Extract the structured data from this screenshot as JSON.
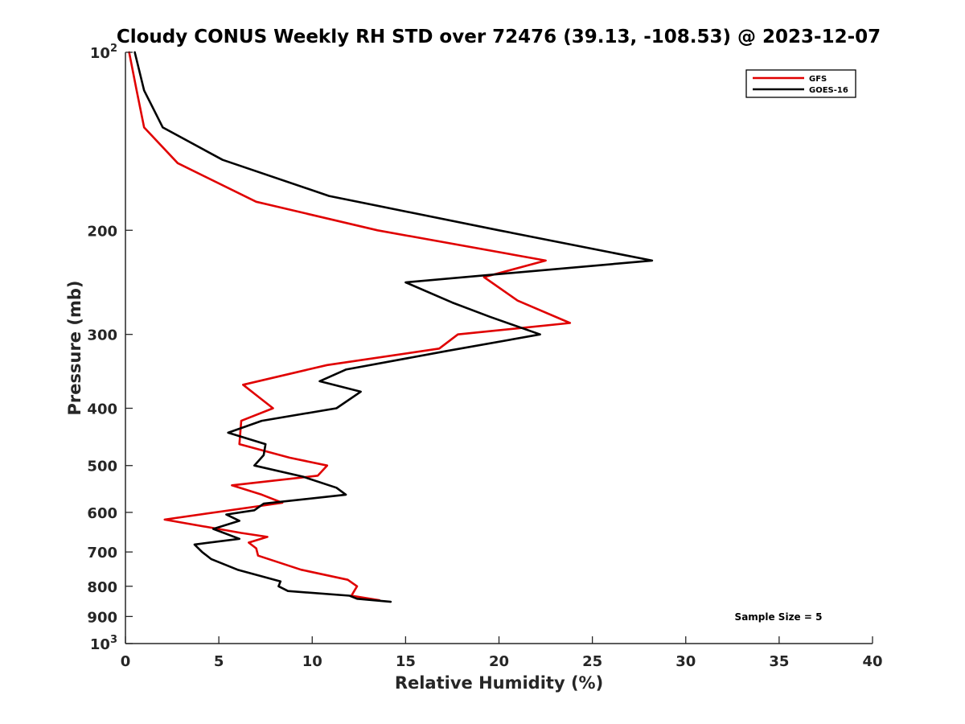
{
  "chart_data": {
    "type": "line",
    "title": "Cloudy CONUS Weekly RH STD over 72476 (39.13, -108.53) @ 2023-12-07",
    "xlabel": "Relative Humidity (%)",
    "ylabel": "Pressure (mb)",
    "xlim": [
      0,
      40
    ],
    "ylim": [
      100,
      1000
    ],
    "yscale": "log",
    "y_reversed": true,
    "grid": false,
    "legend_position": "top-right",
    "x_ticks": [
      0,
      5,
      10,
      15,
      20,
      25,
      30,
      35,
      40
    ],
    "x_tick_labels": [
      "0",
      "5",
      "10",
      "15",
      "20",
      "25",
      "30",
      "35",
      "40"
    ],
    "y_ticks": [
      100,
      200,
      300,
      400,
      500,
      600,
      700,
      800,
      900,
      1000
    ],
    "y_tick_labels": [
      {
        "base": "10",
        "exp": "2"
      },
      {
        "base": "200",
        "exp": ""
      },
      {
        "base": "300",
        "exp": ""
      },
      {
        "base": "400",
        "exp": ""
      },
      {
        "base": "500",
        "exp": ""
      },
      {
        "base": "600",
        "exp": ""
      },
      {
        "base": "700",
        "exp": ""
      },
      {
        "base": "800",
        "exp": ""
      },
      {
        "base": "900",
        "exp": ""
      },
      {
        "base": "10",
        "exp": "3"
      }
    ],
    "annotation": "Sample Size = 5",
    "series": [
      {
        "name": "GFS",
        "color": "#e00000",
        "points": [
          [
            0.2,
            100
          ],
          [
            0.6,
            116
          ],
          [
            1.0,
            134
          ],
          [
            2.8,
            154
          ],
          [
            7.0,
            179
          ],
          [
            13.5,
            200
          ],
          [
            22.5,
            225
          ],
          [
            19.2,
            240
          ],
          [
            21.0,
            263
          ],
          [
            23.8,
            287
          ],
          [
            17.8,
            300
          ],
          [
            16.8,
            317
          ],
          [
            10.8,
            338
          ],
          [
            6.3,
            365
          ],
          [
            7.0,
            380
          ],
          [
            7.9,
            400
          ],
          [
            6.2,
            420
          ],
          [
            6.1,
            460
          ],
          [
            8.8,
            485
          ],
          [
            10.8,
            500
          ],
          [
            10.3,
            520
          ],
          [
            5.7,
            540
          ],
          [
            7.3,
            560
          ],
          [
            8.4,
            578
          ],
          [
            2.1,
            617
          ],
          [
            6.2,
            650
          ],
          [
            7.6,
            660
          ],
          [
            6.6,
            675
          ],
          [
            7.0,
            690
          ],
          [
            7.1,
            710
          ],
          [
            9.4,
            750
          ],
          [
            11.9,
            780
          ],
          [
            12.4,
            800
          ],
          [
            12.1,
            830
          ],
          [
            13.6,
            845
          ]
        ]
      },
      {
        "name": "GOES-16",
        "color": "#000000",
        "points": [
          [
            0.5,
            100
          ],
          [
            1.0,
            116
          ],
          [
            2.0,
            134
          ],
          [
            5.2,
            152
          ],
          [
            10.9,
            175
          ],
          [
            20.0,
            200
          ],
          [
            28.2,
            225
          ],
          [
            15.0,
            245
          ],
          [
            17.5,
            265
          ],
          [
            19.5,
            280
          ],
          [
            22.2,
            300
          ],
          [
            17.2,
            320
          ],
          [
            11.8,
            344
          ],
          [
            10.4,
            360
          ],
          [
            12.6,
            375
          ],
          [
            11.3,
            400
          ],
          [
            7.3,
            420
          ],
          [
            5.5,
            440
          ],
          [
            7.5,
            460
          ],
          [
            7.4,
            480
          ],
          [
            6.9,
            500
          ],
          [
            9.5,
            522
          ],
          [
            11.3,
            545
          ],
          [
            11.8,
            560
          ],
          [
            7.4,
            580
          ],
          [
            6.9,
            595
          ],
          [
            5.4,
            605
          ],
          [
            6.1,
            620
          ],
          [
            4.7,
            640
          ],
          [
            6.1,
            665
          ],
          [
            3.7,
            680
          ],
          [
            4.1,
            700
          ],
          [
            4.6,
            720
          ],
          [
            6.0,
            750
          ],
          [
            8.3,
            785
          ],
          [
            8.2,
            800
          ],
          [
            8.7,
            815
          ],
          [
            12.0,
            830
          ],
          [
            12.4,
            840
          ],
          [
            14.2,
            850
          ]
        ]
      }
    ]
  }
}
